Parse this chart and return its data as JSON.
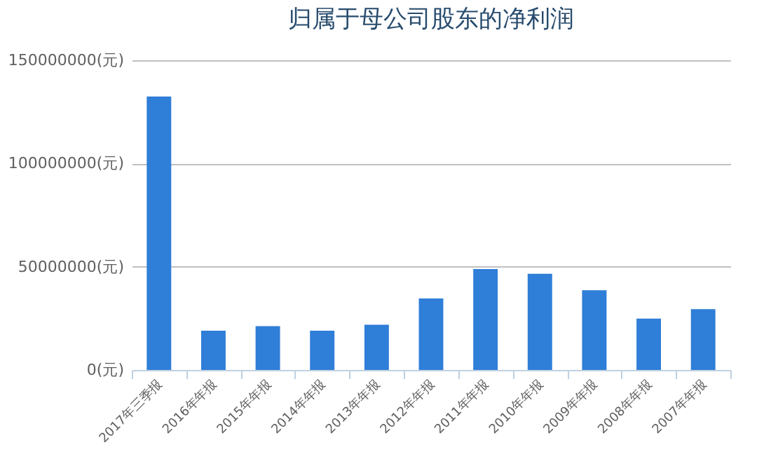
{
  "chart_data": {
    "type": "bar",
    "title": "归属于母公司股东的净利润",
    "categories": [
      "2017年三季报",
      "2016年年报",
      "2015年年报",
      "2014年年报",
      "2013年年报",
      "2012年年报",
      "2011年年报",
      "2010年年报",
      "2009年年报",
      "2008年年报",
      "2007年年报"
    ],
    "values": [
      132400000,
      19000000,
      21200000,
      19000000,
      21900000,
      34600000,
      48900000,
      46600000,
      38600000,
      24900000,
      29400000
    ],
    "color": "#2f7ed8",
    "ylim": [
      0,
      150000000
    ],
    "yticks": [
      {
        "value": 0,
        "label": "0(元)"
      },
      {
        "value": 50000000,
        "label": "50000000(元)"
      },
      {
        "value": 100000000,
        "label": "100000000(元)"
      },
      {
        "value": 150000000,
        "label": "150000000(元)"
      }
    ],
    "grid": "y"
  }
}
